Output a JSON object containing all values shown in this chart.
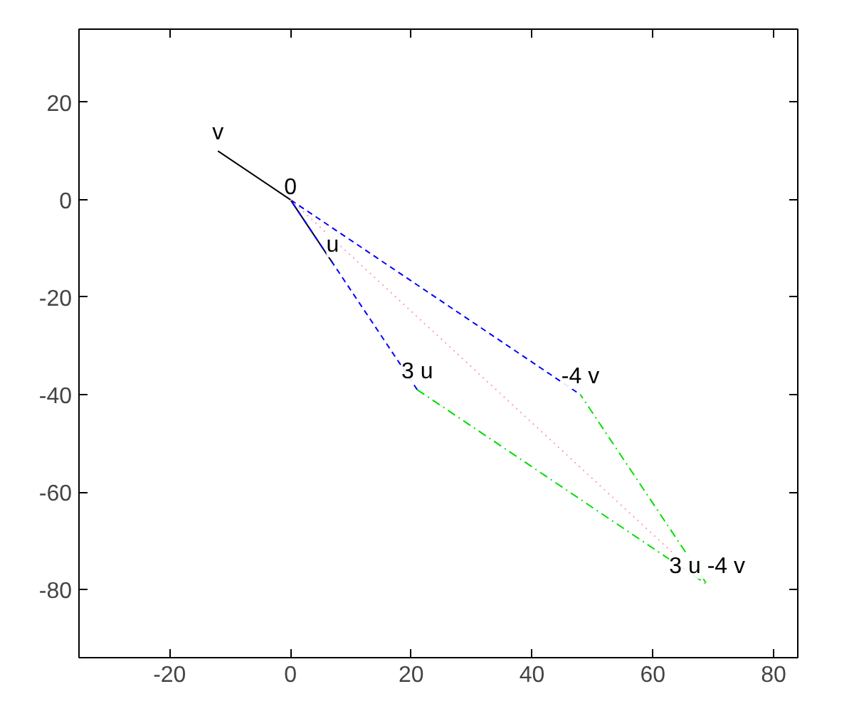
{
  "chart_data": {
    "type": "line",
    "xlim": [
      -35,
      84
    ],
    "ylim": [
      -94,
      35
    ],
    "xticks": [
      -20,
      0,
      20,
      40,
      60,
      80
    ],
    "yticks": [
      -80,
      -60,
      -40,
      -20,
      0,
      20
    ],
    "grid": false,
    "marker": "none",
    "series": [
      {
        "color": "#000000",
        "line_style": "solid",
        "x": [
          -12,
          0,
          7
        ],
        "values": [
          10,
          0,
          -13
        ]
      },
      {
        "color": "#0000ff",
        "line_style": "dashed",
        "x": [
          21,
          0,
          48
        ],
        "values": [
          -39,
          0,
          -40
        ]
      },
      {
        "color": "#00dd00",
        "line_style": "dashdot",
        "x": [
          21,
          69,
          48
        ],
        "values": [
          -39,
          -79,
          -40
        ]
      },
      {
        "color": "#ffa0b0",
        "line_style": "dotted",
        "x": [
          0,
          69
        ],
        "values": [
          0,
          -79
        ]
      }
    ],
    "annotations": [
      {
        "text": "v",
        "x": -12,
        "y": 10
      },
      {
        "text": "0",
        "x": 0,
        "y": 0
      },
      {
        "text": "u",
        "x": 7,
        "y": -13
      },
      {
        "text": "3 u",
        "x": 21,
        "y": -39
      },
      {
        "text": "-4 v",
        "x": 48,
        "y": -40
      },
      {
        "text": "3 u -4 v",
        "x": 69,
        "y": -79
      }
    ]
  }
}
